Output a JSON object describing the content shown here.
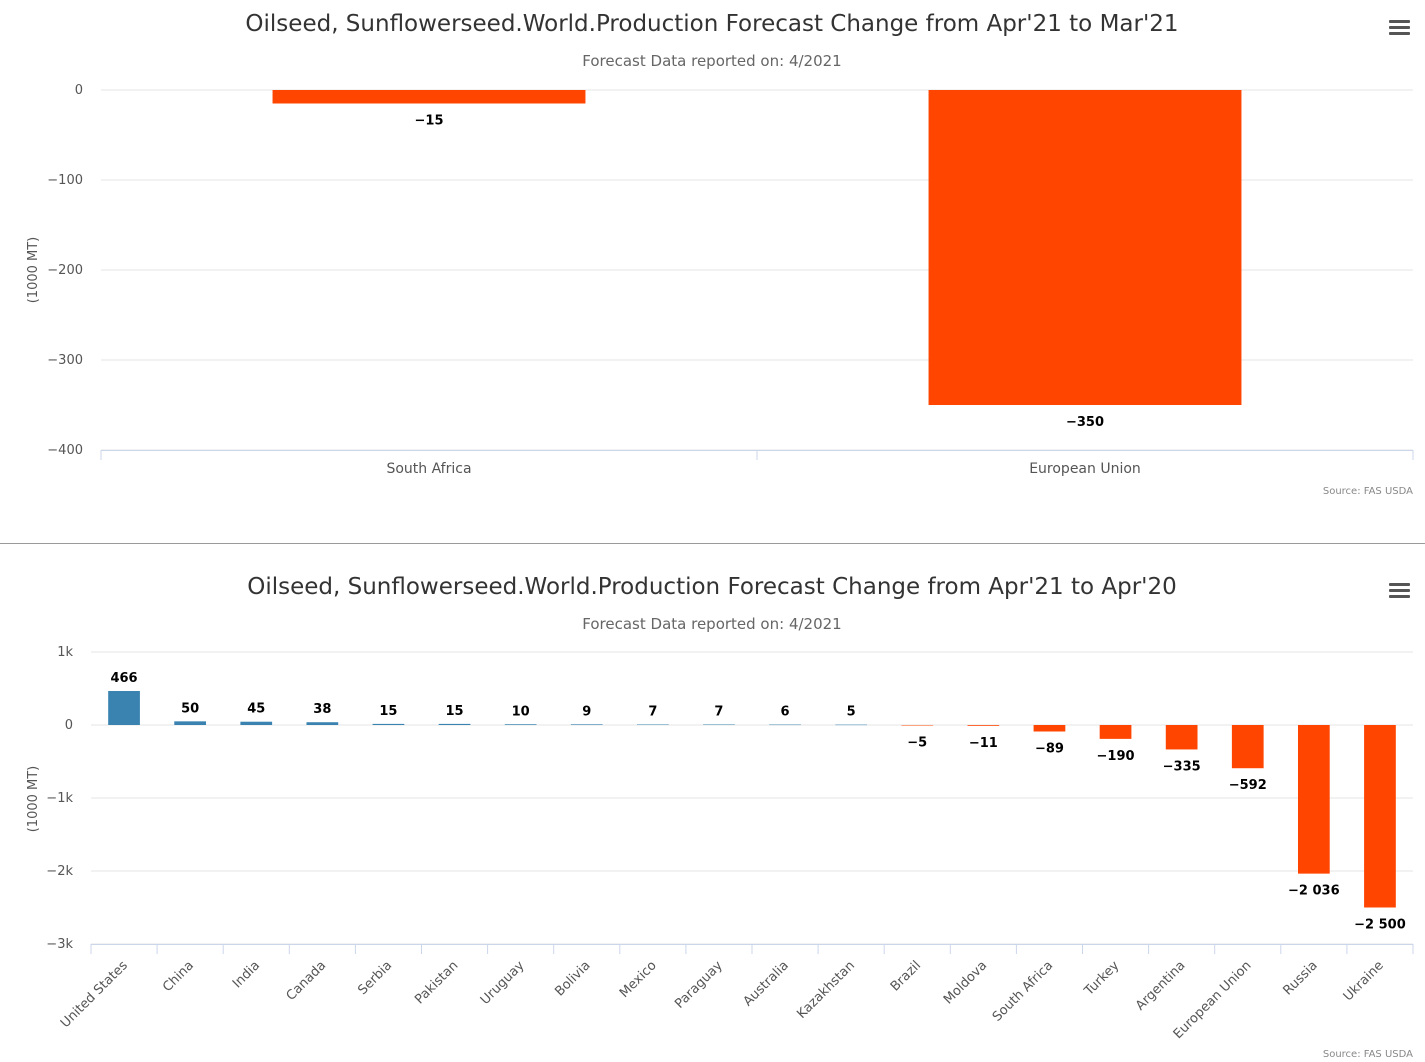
{
  "colors": {
    "positive": "#3a83b0",
    "negative": "#ff4500",
    "grid": "#e6e6e6",
    "axis": "#ccd6eb"
  },
  "menu_icon": "hamburger-menu-icon",
  "chart_data": [
    {
      "type": "bar",
      "title": "Oilseed, Sunflowerseed.World.Production Forecast Change from Apr'21 to Mar'21",
      "subtitle": "Forecast Data reported on: 4/2021",
      "ylabel": "(1000 MT)",
      "xlabel": "",
      "categories": [
        "South Africa",
        "European Union"
      ],
      "values": [
        -15,
        -350
      ],
      "value_labels": [
        "−15",
        "−350"
      ],
      "ylim": [
        -400,
        0
      ],
      "yticks": [
        0,
        -100,
        -200,
        -300,
        -400
      ],
      "ytick_labels": [
        "0",
        "−100",
        "−200",
        "−300",
        "−400"
      ],
      "grid": true,
      "legend": "none",
      "credit": "Source: FAS USDA"
    },
    {
      "type": "bar",
      "title": "Oilseed, Sunflowerseed.World.Production Forecast Change from Apr'21 to Apr'20",
      "subtitle": "Forecast Data reported on: 4/2021",
      "ylabel": "(1000 MT)",
      "xlabel": "",
      "categories": [
        "United States",
        "China",
        "India",
        "Canada",
        "Serbia",
        "Pakistan",
        "Uruguay",
        "Bolivia",
        "Mexico",
        "Paraguay",
        "Australia",
        "Kazakhstan",
        "Brazil",
        "Moldova",
        "South Africa",
        "Turkey",
        "Argentina",
        "European Union",
        "Russia",
        "Ukraine"
      ],
      "values": [
        466,
        50,
        45,
        38,
        15,
        15,
        10,
        9,
        7,
        7,
        6,
        5,
        -5,
        -11,
        -89,
        -190,
        -335,
        -592,
        -2036,
        -2500
      ],
      "value_labels": [
        "466",
        "50",
        "45",
        "38",
        "15",
        "15",
        "10",
        "9",
        "7",
        "7",
        "6",
        "5",
        "−5",
        "−11",
        "−89",
        "−190",
        "−335",
        "−592",
        "−2 036",
        "−2 500"
      ],
      "ylim": [
        -3000,
        1000
      ],
      "yticks": [
        1000,
        0,
        -1000,
        -2000,
        -3000
      ],
      "ytick_labels": [
        "1k",
        "0",
        "−1k",
        "−2k",
        "−3k"
      ],
      "grid": true,
      "legend": "none",
      "credit": "Source: FAS USDA"
    }
  ]
}
